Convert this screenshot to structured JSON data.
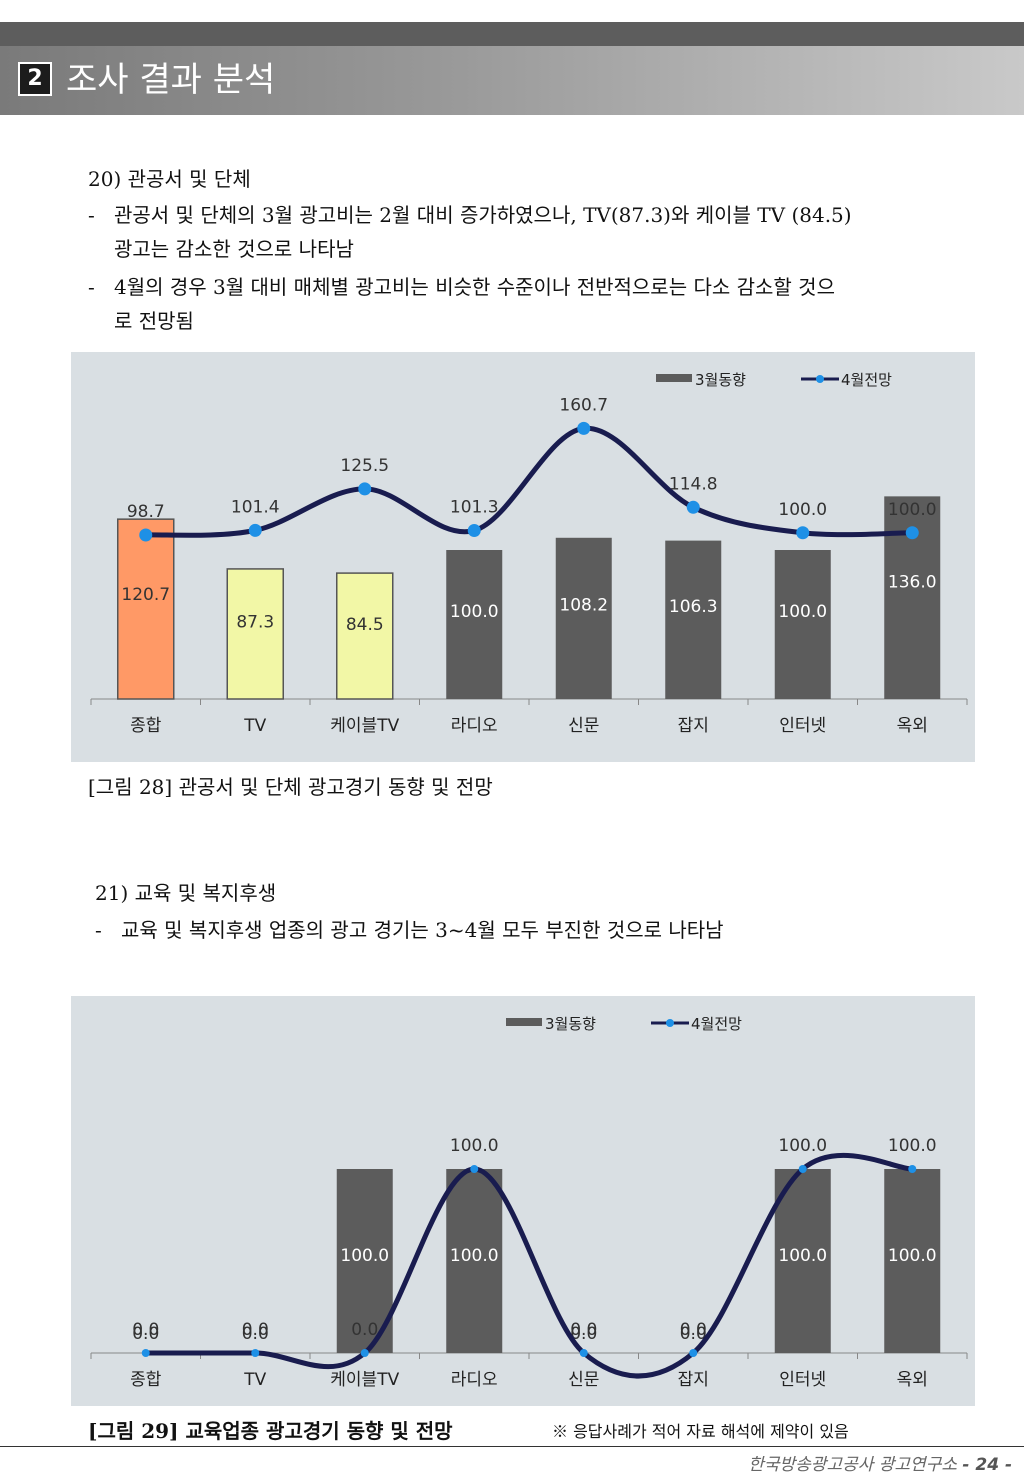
{
  "section": {
    "number": "2",
    "title": "조사 결과 분석"
  },
  "part1": {
    "heading": "20) 관공서 및 단체",
    "bullets": [
      "관공서 및 단체의 3월 광고비는 2월 대비 증가하였으나, TV(87.3)와 케이블 TV (84.5)",
      "광고는 감소한 것으로 나타남",
      "4월의 경우 3월 대비 매체별 광고비는 비슷한 수준이나 전반적으로는 다소 감소할 것으",
      "로 전망됨"
    ],
    "dash": "-"
  },
  "part2": {
    "heading": "21) 교육 및 복지후생",
    "bullets": [
      "교육 및 복지후생 업종의 광고 경기는 3~4월 모두 부진한 것으로 나타남"
    ],
    "dash": "-"
  },
  "chart_data": [
    {
      "type": "bar",
      "title": "[그림 28] 관공서 및 단체 광고경기 동향 및 전망",
      "categories": [
        "종합",
        "TV",
        "케이블TV",
        "라디오",
        "신문",
        "잡지",
        "인터넷",
        "옥외"
      ],
      "series": [
        {
          "name": "3월동향",
          "kind": "bar",
          "values": [
            120.7,
            87.3,
            84.5,
            100.0,
            108.2,
            106.3,
            100.0,
            136.0
          ],
          "labels": [
            "120.7",
            "87.3",
            "84.5",
            "100.0",
            "108.2",
            "106.3",
            "100.0",
            "136.0"
          ]
        },
        {
          "name": "4월전망",
          "kind": "line",
          "values": [
            98.7,
            101.4,
            125.5,
            101.3,
            160.7,
            114.8,
            100.0,
            100.0
          ],
          "labels": [
            "98.7",
            "101.4",
            "125.5",
            "101.3",
            "160.7",
            "114.8",
            "100.0",
            "100.0"
          ]
        }
      ],
      "bar_colors": [
        "#ff9966",
        "#f2f7a6",
        "#f2f7a6",
        "#5c5c5c",
        "#5c5c5c",
        "#5c5c5c",
        "#5c5c5c",
        "#5c5c5c"
      ],
      "line_color": "#191c4f",
      "marker_color": "#1e90e6",
      "legend": [
        "3월동향",
        "4월전망"
      ]
    },
    {
      "type": "bar",
      "title": "[그림 29] 교육업종 광고경기 동향 및 전망",
      "categories": [
        "종합",
        "TV",
        "케이블TV",
        "라디오",
        "신문",
        "잡지",
        "인터넷",
        "옥외"
      ],
      "series": [
        {
          "name": "3월동향",
          "kind": "bar",
          "values": [
            0.0,
            0.0,
            100.0,
            100.0,
            0.0,
            0.0,
            100.0,
            100.0
          ],
          "labels": [
            "0.0",
            "0.0",
            "100.0",
            "100.0",
            "0.0",
            "0.0",
            "100.0",
            "100.0"
          ]
        },
        {
          "name": "4월전망",
          "kind": "line",
          "values": [
            0.0,
            0.0,
            0.0,
            100.0,
            0.0,
            0.0,
            100.0,
            100.0
          ],
          "labels": [
            "0.0",
            "0.0",
            "0.0",
            "100.0",
            "0.0",
            "0.0",
            "100.0",
            "100.0"
          ]
        }
      ],
      "bar_colors": [
        "#5c5c5c",
        "#5c5c5c",
        "#5c5c5c",
        "#5c5c5c",
        "#5c5c5c",
        "#5c5c5c",
        "#5c5c5c",
        "#5c5c5c"
      ],
      "line_color": "#191c4f",
      "marker_color": "#1e90e6",
      "legend": [
        "3월동향",
        "4월전망"
      ]
    }
  ],
  "note": "※ 응답사례가 적어 자료 해석에 제약이 있음",
  "footer": {
    "org": "한국방송광고공사 광고연구소",
    "page": "- 24 -"
  }
}
